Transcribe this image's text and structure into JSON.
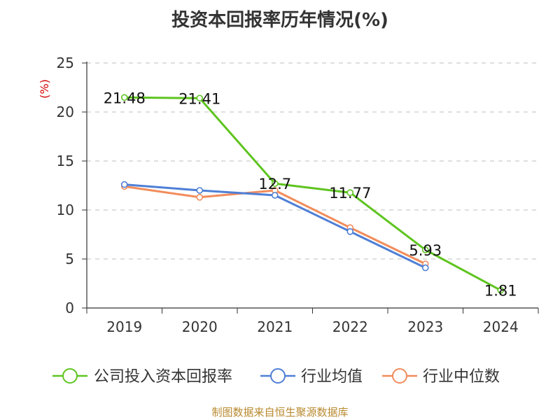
{
  "chart_data": {
    "type": "line",
    "title": "投资本回报率历年情况(%)",
    "ylabel": "(%)",
    "xlabel": "",
    "ylim": [
      0,
      25
    ],
    "yticks": [
      0,
      5,
      10,
      15,
      20,
      25
    ],
    "grid": true,
    "legend_position": "bottom",
    "categories": [
      "2019",
      "2020",
      "2021",
      "2022",
      "2023",
      "2024"
    ],
    "series": [
      {
        "name": "公司投入资本回报率",
        "color": "#5ec41f",
        "values": [
          21.48,
          21.41,
          12.7,
          11.77,
          5.93,
          1.81
        ],
        "labels": [
          "21.48",
          "21.41",
          "12.7",
          "11.77",
          "5.93",
          "1.81"
        ]
      },
      {
        "name": "行业均值",
        "color": "#4e7fd6",
        "values": [
          12.6,
          12.0,
          11.5,
          7.8,
          4.1,
          null
        ]
      },
      {
        "name": "行业中位数",
        "color": "#f28c5b",
        "values": [
          12.4,
          11.3,
          12.0,
          8.2,
          4.5,
          null
        ]
      }
    ]
  },
  "source": "制图数据来自恒生聚源数据库"
}
